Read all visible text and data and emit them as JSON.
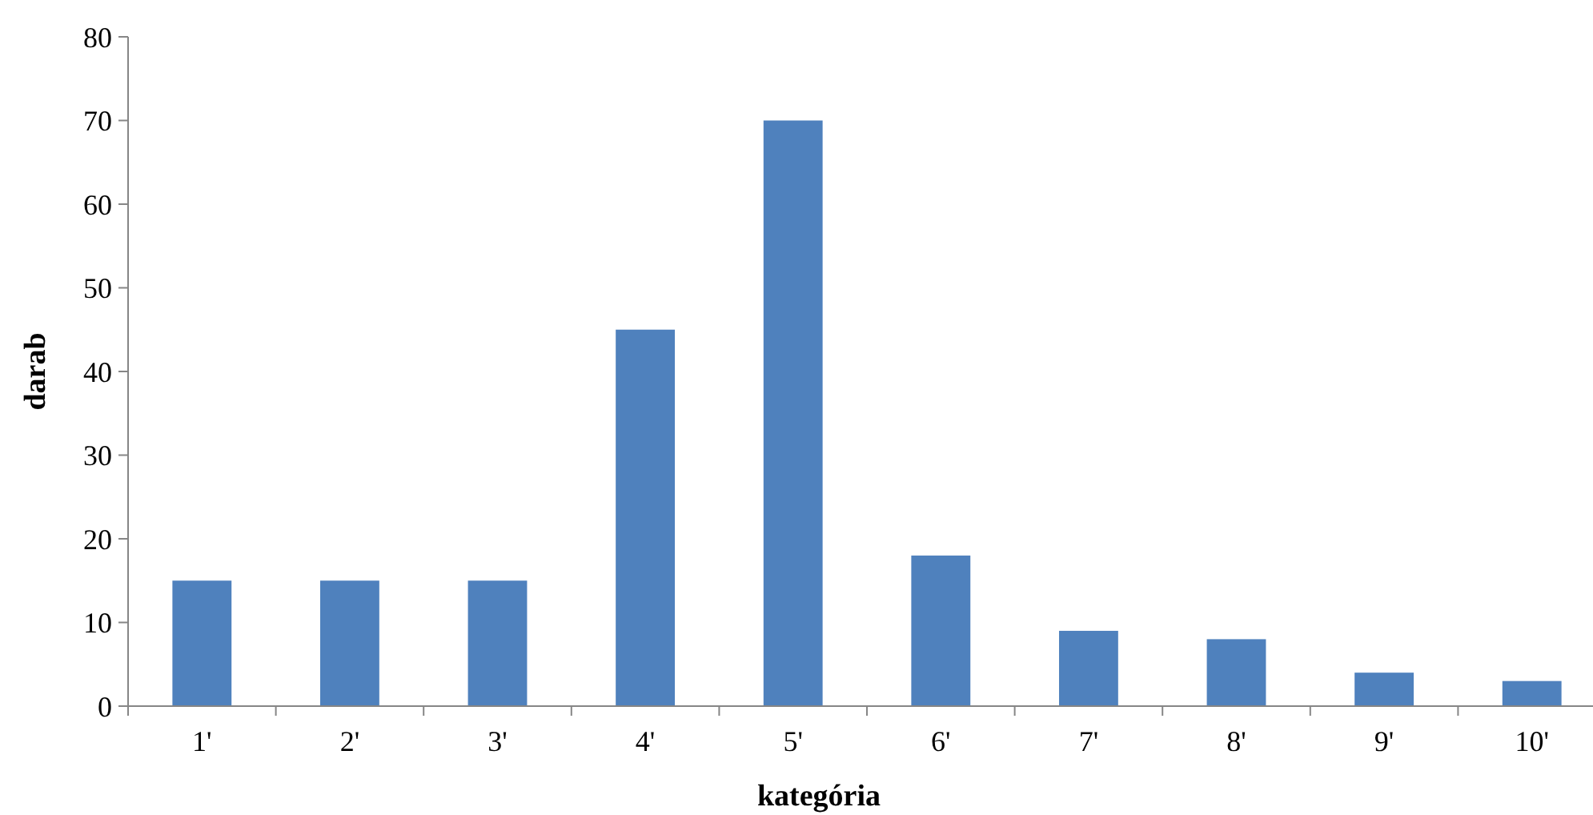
{
  "chart_data": {
    "type": "bar",
    "xlabel": "kategória",
    "ylabel": "darab",
    "categories": [
      "1'",
      "2'",
      "3'",
      "4'",
      "5'",
      "6'",
      "7'",
      "8'",
      "9'",
      "10'"
    ],
    "values": [
      15,
      15,
      15,
      45,
      70,
      18,
      9,
      8,
      4,
      3
    ],
    "color": "#4f81bd",
    "ylim": [
      0,
      80
    ],
    "yticks": [
      0,
      10,
      20,
      30,
      40,
      50,
      60,
      70,
      80
    ],
    "grid": false
  }
}
